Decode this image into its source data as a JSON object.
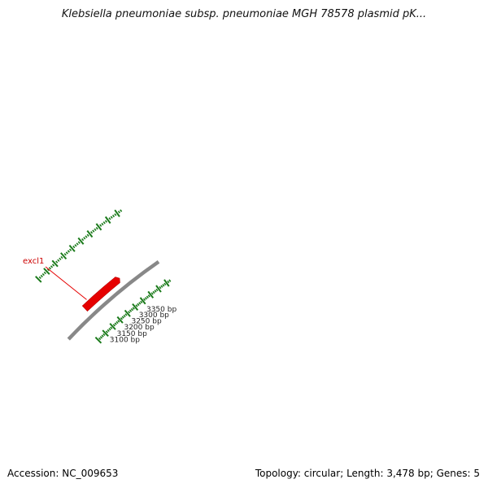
{
  "title": "Klebsiella pneumoniae subsp. pneumoniae MGH 78578 plasmid pK...",
  "accession": "Accession: NC_009653",
  "summary": "Topology: circular; Length: 3,478 bp; Genes: 5",
  "plasmid_length_bp": 3478,
  "features": [
    {
      "name": "excl1",
      "start_bp": 3060,
      "end_bp": 3268,
      "strand": "+",
      "color": "#e60000"
    }
  ],
  "tick_labels": [
    "3100 bp",
    "3150 bp",
    "3200 bp",
    "3250 bp",
    "3300 bp",
    "3350 bp"
  ],
  "colors": {
    "backbone": "#888888",
    "tick": "#1a7a1a",
    "feature": "#e60000",
    "feature_label": "#cc0000"
  }
}
